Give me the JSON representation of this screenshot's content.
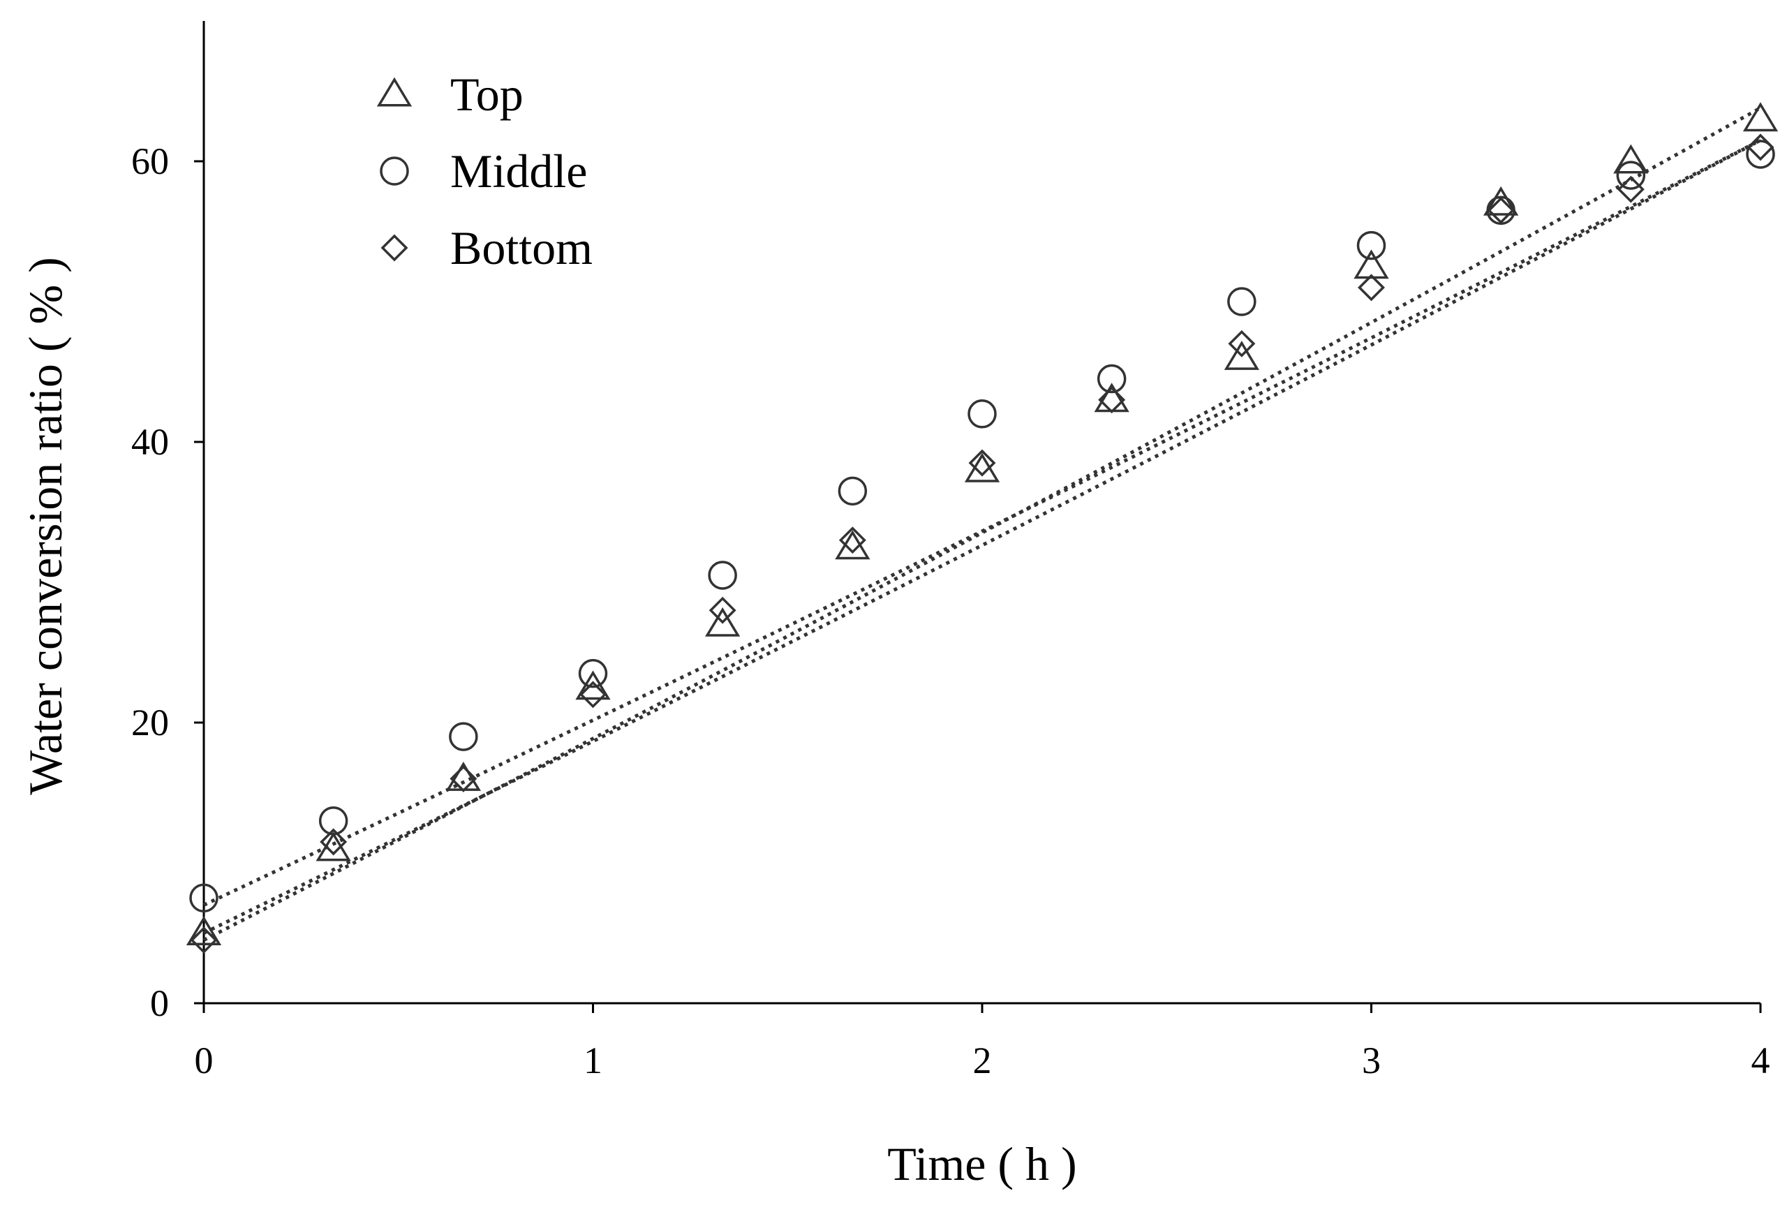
{
  "chart_data": {
    "type": "scatter",
    "title": "",
    "xlabel": "Time ( h )",
    "ylabel": "Water conversion ratio ( % )",
    "xlim": [
      0,
      4
    ],
    "ylim": [
      0,
      70
    ],
    "x_ticks": [
      0,
      1,
      2,
      3,
      4
    ],
    "y_ticks": [
      0,
      20,
      40,
      60
    ],
    "grid": false,
    "legend_position": "top-left",
    "trendlines": "dotted",
    "series": [
      {
        "name": "Top",
        "marker": "triangle",
        "x": [
          0,
          0.333,
          0.667,
          1,
          1.333,
          1.667,
          2,
          2.333,
          2.667,
          3,
          3.333,
          3.667,
          4
        ],
        "y": [
          5,
          11,
          16,
          22.5,
          27,
          32.5,
          38,
          43,
          46,
          52.5,
          57,
          60,
          63
        ],
        "trend": [
          4.5,
          63.8
        ]
      },
      {
        "name": "Middle",
        "marker": "circle",
        "x": [
          0,
          0.333,
          0.667,
          1,
          1.333,
          1.667,
          2,
          2.333,
          2.667,
          3,
          3.333,
          3.667,
          4
        ],
        "y": [
          7.5,
          13,
          19,
          23.5,
          30.5,
          36.5,
          42,
          44.5,
          50,
          54,
          56.5,
          59,
          60.5
        ],
        "trend": [
          7,
          61.5
        ]
      },
      {
        "name": "Bottom",
        "marker": "diamond",
        "x": [
          0,
          0.333,
          0.667,
          1,
          1.333,
          1.667,
          2,
          2.333,
          2.667,
          3,
          3.333,
          3.667,
          4
        ],
        "y": [
          4.5,
          11.5,
          16,
          22,
          28,
          33,
          38.5,
          43,
          47,
          51,
          56.5,
          58,
          61
        ],
        "trend": [
          5,
          61.5
        ]
      }
    ]
  }
}
